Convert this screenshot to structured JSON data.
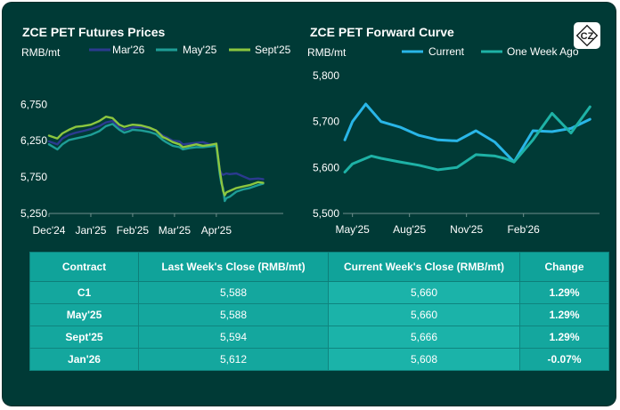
{
  "titles": {
    "left": "ZCE PET Futures Prices",
    "right": "ZCE PET Forward Curve"
  },
  "logo": {
    "text": "CZ"
  },
  "chart_data": [
    {
      "type": "line",
      "title": "ZCE PET Futures Prices",
      "ylabel": "RMB/mt",
      "xlabel": "",
      "ylim": [
        5250,
        6900
      ],
      "y_ticks": [
        "6,750",
        "6,250",
        "5,750",
        "5,250"
      ],
      "y_tick_values": [
        6750,
        6250,
        5750,
        5250
      ],
      "x_tick_labels": [
        "Dec'24",
        "Jan'25",
        "Feb'25",
        "Mar'25",
        "Apr'25"
      ],
      "x_tick_positions": [
        0,
        25,
        50,
        75,
        100
      ],
      "x_range": [
        0,
        140
      ],
      "legend_position": "top",
      "series": [
        {
          "name": "Mar'26",
          "color": "#2b3a8f",
          "x": [
            0,
            5,
            8,
            12,
            16,
            20,
            25,
            30,
            34,
            38,
            42,
            45,
            48,
            50,
            55,
            60,
            64,
            68,
            70,
            74,
            78,
            80,
            84,
            88,
            92,
            96,
            100,
            102,
            103,
            104,
            105,
            106,
            108,
            112,
            116,
            120,
            125,
            128
          ],
          "values": [
            6240,
            6200,
            6280,
            6330,
            6360,
            6380,
            6410,
            6450,
            6500,
            6520,
            6430,
            6400,
            6420,
            6430,
            6440,
            6420,
            6390,
            6320,
            6300,
            6250,
            6240,
            6200,
            6210,
            6220,
            6230,
            6200,
            6200,
            5850,
            5800,
            5780,
            5790,
            5800,
            5790,
            5800,
            5760,
            5720,
            5730,
            5720
          ]
        },
        {
          "name": "May'25",
          "color": "#1e9d96",
          "x": [
            0,
            5,
            8,
            12,
            16,
            20,
            25,
            30,
            34,
            38,
            42,
            45,
            48,
            50,
            55,
            60,
            64,
            68,
            70,
            74,
            78,
            80,
            84,
            88,
            92,
            96,
            100,
            102,
            103,
            104,
            105,
            106,
            108,
            112,
            116,
            120,
            125,
            128
          ],
          "values": [
            6200,
            6130,
            6200,
            6260,
            6280,
            6300,
            6330,
            6380,
            6450,
            6480,
            6400,
            6360,
            6380,
            6400,
            6390,
            6370,
            6340,
            6260,
            6230,
            6180,
            6160,
            6130,
            6150,
            6160,
            6160,
            6170,
            6180,
            5800,
            5660,
            5600,
            5420,
            5460,
            5480,
            5550,
            5580,
            5600,
            5640,
            5660
          ]
        },
        {
          "name": "Sept'25",
          "color": "#8cc63f",
          "x": [
            0,
            5,
            8,
            12,
            16,
            20,
            25,
            30,
            34,
            38,
            42,
            45,
            48,
            50,
            55,
            60,
            64,
            68,
            70,
            74,
            78,
            80,
            84,
            88,
            92,
            96,
            100,
            102,
            103,
            104,
            105,
            106,
            108,
            112,
            116,
            120,
            125,
            128
          ],
          "values": [
            6320,
            6280,
            6350,
            6400,
            6440,
            6450,
            6470,
            6520,
            6580,
            6560,
            6470,
            6440,
            6460,
            6470,
            6460,
            6430,
            6390,
            6300,
            6280,
            6230,
            6200,
            6160,
            6180,
            6200,
            6180,
            6190,
            6210,
            5850,
            5700,
            5560,
            5500,
            5540,
            5560,
            5600,
            5620,
            5640,
            5680,
            5670
          ]
        }
      ]
    },
    {
      "type": "line",
      "title": "ZCE PET Forward Curve",
      "ylabel": "RMB/mt",
      "xlabel": "",
      "ylim": [
        5500,
        5800
      ],
      "y_ticks": [
        "5,800",
        "5,700",
        "5,600",
        "5,500"
      ],
      "y_tick_values": [
        5800,
        5700,
        5600,
        5500
      ],
      "x_tick_labels": [
        "May'25",
        "Aug'25",
        "Nov'25",
        "Feb'26"
      ],
      "x_tick_positions": [
        0,
        3,
        6,
        9
      ],
      "x_range": [
        -0.5,
        13
      ],
      "legend_position": "top",
      "series": [
        {
          "name": "Current",
          "color": "#29b6e8",
          "x": [
            -0.4,
            0,
            0.7,
            1.5,
            2.5,
            3.5,
            4.5,
            5.5,
            6.5,
            7.5,
            8.5,
            9.5,
            10.5,
            11.5,
            12.5
          ],
          "values": [
            5660,
            5700,
            5738,
            5700,
            5688,
            5670,
            5660,
            5658,
            5680,
            5655,
            5612,
            5680,
            5678,
            5685,
            5705
          ]
        },
        {
          "name": "One Week Ago",
          "color": "#1eb2a6",
          "x": [
            -0.4,
            0,
            1,
            1.5,
            2.5,
            3.5,
            4.5,
            5.5,
            6.5,
            7.5,
            8,
            8.5,
            9.5,
            10.5,
            11.5,
            12.5
          ],
          "values": [
            5590,
            5608,
            5625,
            5620,
            5612,
            5605,
            5595,
            5600,
            5628,
            5625,
            5620,
            5612,
            5660,
            5718,
            5675,
            5732
          ]
        }
      ]
    }
  ],
  "table": {
    "headers": [
      "Contract",
      "Last Week's Close (RMB/mt)",
      "Current Week's Close (RMB/mt)",
      "Change"
    ],
    "rows": [
      [
        "C1",
        "5,588",
        "5,660",
        "1.29%"
      ],
      [
        "May'25",
        "5,588",
        "5,660",
        "1.29%"
      ],
      [
        "Sept'25",
        "5,594",
        "5,666",
        "1.29%"
      ],
      [
        "Jan'26",
        "5,612",
        "5,608",
        "-0.07%"
      ]
    ]
  }
}
